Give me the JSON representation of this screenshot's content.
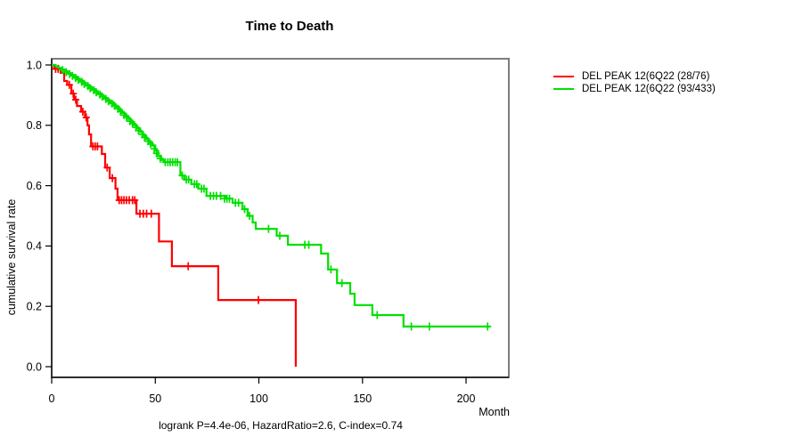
{
  "chart_data": {
    "type": "line",
    "subtype": "kaplan_meier_survival_step",
    "title": "Time to Death",
    "xlabel": "Month",
    "ylabel": "cumulative survival rate",
    "annotation": "logrank P=4.4e-06, HazardRatio=2.6, C-index=0.74",
    "x_ticks": [
      0,
      50,
      100,
      150,
      200
    ],
    "y_ticks": [
      "0.0",
      "0.2",
      "0.4",
      "0.6",
      "0.8",
      "1.0"
    ],
    "xlim": [
      0,
      220
    ],
    "ylim": [
      0,
      1
    ],
    "grid": false,
    "legend_position": "right-outside",
    "series": [
      {
        "label": "DEL PEAK 12(6Q22 (28/76)",
        "color": "#ff0000",
        "start": [
          0,
          1.0
        ],
        "steps": [
          [
            1.2,
            0.987
          ],
          [
            4.3,
            0.974
          ],
          [
            6,
            0.947
          ],
          [
            7.5,
            0.934
          ],
          [
            9.5,
            0.905
          ],
          [
            10.8,
            0.885
          ],
          [
            12.2,
            0.864
          ],
          [
            14.2,
            0.845
          ],
          [
            16.1,
            0.826
          ],
          [
            17.3,
            0.8
          ],
          [
            18,
            0.77
          ],
          [
            19,
            0.73
          ],
          [
            24.2,
            0.705
          ],
          [
            25.8,
            0.66
          ],
          [
            28,
            0.625
          ],
          [
            30.8,
            0.59
          ],
          [
            31.8,
            0.552
          ],
          [
            40.9,
            0.507
          ],
          [
            51.8,
            0.415
          ],
          [
            58,
            0.333
          ],
          [
            80.4,
            0.221
          ],
          [
            117.8,
            0
          ]
        ],
        "end_month": 117.8,
        "censor_marks": [
          [
            1.9,
            0.987
          ],
          [
            3.1,
            0.987
          ],
          [
            8.5,
            0.934
          ],
          [
            10.4,
            0.905
          ],
          [
            11.6,
            0.885
          ],
          [
            15,
            0.845
          ],
          [
            16.7,
            0.826
          ],
          [
            19.9,
            0.73
          ],
          [
            21,
            0.73
          ],
          [
            22.1,
            0.73
          ],
          [
            26.8,
            0.66
          ],
          [
            29.3,
            0.625
          ],
          [
            32.6,
            0.552
          ],
          [
            33.7,
            0.552
          ],
          [
            34.9,
            0.552
          ],
          [
            36.1,
            0.552
          ],
          [
            37.4,
            0.552
          ],
          [
            39,
            0.552
          ],
          [
            40.1,
            0.552
          ],
          [
            42.6,
            0.507
          ],
          [
            44.2,
            0.507
          ],
          [
            45.8,
            0.507
          ],
          [
            48.1,
            0.507
          ],
          [
            65.9,
            0.333
          ],
          [
            99.8,
            0.221
          ]
        ]
      },
      {
        "label": "DEL PEAK 12(6Q22 (93/433)",
        "color": "#00e000",
        "start": [
          0,
          1.0
        ],
        "steps": [
          [
            1.9,
            0.995
          ],
          [
            3.4,
            0.99
          ],
          [
            4.8,
            0.985
          ],
          [
            6.3,
            0.979
          ],
          [
            7.8,
            0.973
          ],
          [
            9.2,
            0.967
          ],
          [
            10.7,
            0.961
          ],
          [
            12.1,
            0.955
          ],
          [
            13.6,
            0.948
          ],
          [
            15,
            0.941
          ],
          [
            16.5,
            0.934
          ],
          [
            17.9,
            0.927
          ],
          [
            19.4,
            0.92
          ],
          [
            20.8,
            0.913
          ],
          [
            22.3,
            0.906
          ],
          [
            23.8,
            0.899
          ],
          [
            25.2,
            0.891
          ],
          [
            26.7,
            0.884
          ],
          [
            28.1,
            0.877
          ],
          [
            29.6,
            0.869
          ],
          [
            31,
            0.861
          ],
          [
            32.5,
            0.851
          ],
          [
            33.9,
            0.841
          ],
          [
            35.4,
            0.831
          ],
          [
            36.9,
            0.821
          ],
          [
            38.3,
            0.811
          ],
          [
            39.8,
            0.8
          ],
          [
            41.2,
            0.79
          ],
          [
            42.7,
            0.778
          ],
          [
            44.1,
            0.766
          ],
          [
            45.6,
            0.754
          ],
          [
            47,
            0.744
          ],
          [
            48.5,
            0.733
          ],
          [
            50,
            0.716
          ],
          [
            51.4,
            0.698
          ],
          [
            52.8,
            0.685
          ],
          [
            54.3,
            0.678
          ],
          [
            62.1,
            0.634
          ],
          [
            64,
            0.62
          ],
          [
            67.4,
            0.605
          ],
          [
            70.8,
            0.59
          ],
          [
            74.7,
            0.566
          ],
          [
            83.9,
            0.557
          ],
          [
            87.3,
            0.543
          ],
          [
            92.1,
            0.522
          ],
          [
            94.6,
            0.5
          ],
          [
            97,
            0.478
          ],
          [
            98.5,
            0.457
          ],
          [
            108.6,
            0.434
          ],
          [
            114,
            0.404
          ],
          [
            130,
            0.375
          ],
          [
            133.4,
            0.322
          ],
          [
            137.7,
            0.277
          ],
          [
            144.1,
            0.242
          ],
          [
            146.2,
            0.204
          ],
          [
            154.8,
            0.171
          ],
          [
            169.8,
            0.133
          ]
        ],
        "end_month": 211.6,
        "censor_marks": [
          [
            5.3,
            0.983
          ],
          [
            7,
            0.976
          ],
          [
            8.7,
            0.97
          ],
          [
            10,
            0.964
          ],
          [
            11.6,
            0.957
          ],
          [
            12.8,
            0.951
          ],
          [
            14.6,
            0.944
          ],
          [
            15.7,
            0.937
          ],
          [
            17.5,
            0.93
          ],
          [
            18.6,
            0.923
          ],
          [
            20.4,
            0.916
          ],
          [
            21.5,
            0.909
          ],
          [
            23.3,
            0.902
          ],
          [
            24.4,
            0.895
          ],
          [
            26.2,
            0.887
          ],
          [
            27.4,
            0.88
          ],
          [
            29.1,
            0.872
          ],
          [
            30.3,
            0.865
          ],
          [
            32,
            0.855
          ],
          [
            33.2,
            0.846
          ],
          [
            34.9,
            0.834
          ],
          [
            36.1,
            0.827
          ],
          [
            37.8,
            0.814
          ],
          [
            39,
            0.806
          ],
          [
            40.7,
            0.793
          ],
          [
            41.9,
            0.783
          ],
          [
            43.7,
            0.77
          ],
          [
            44.8,
            0.76
          ],
          [
            46.6,
            0.747
          ],
          [
            47.7,
            0.738
          ],
          [
            49.5,
            0.722
          ],
          [
            50.6,
            0.707
          ],
          [
            52.4,
            0.69
          ],
          [
            54.8,
            0.678
          ],
          [
            56.1,
            0.678
          ],
          [
            57.2,
            0.678
          ],
          [
            58.4,
            0.678
          ],
          [
            59.6,
            0.678
          ],
          [
            60.7,
            0.678
          ],
          [
            63,
            0.634
          ],
          [
            65,
            0.62
          ],
          [
            66.1,
            0.62
          ],
          [
            68.9,
            0.605
          ],
          [
            70,
            0.605
          ],
          [
            72.3,
            0.59
          ],
          [
            73.5,
            0.59
          ],
          [
            76.6,
            0.566
          ],
          [
            78.1,
            0.566
          ],
          [
            79.5,
            0.566
          ],
          [
            81.5,
            0.566
          ],
          [
            83.4,
            0.557
          ],
          [
            84.6,
            0.557
          ],
          [
            85.8,
            0.557
          ],
          [
            88.7,
            0.543
          ],
          [
            90.2,
            0.543
          ],
          [
            93.1,
            0.522
          ],
          [
            95.5,
            0.5
          ],
          [
            104.7,
            0.457
          ],
          [
            110.1,
            0.434
          ],
          [
            122.2,
            0.404
          ],
          [
            124.1,
            0.404
          ],
          [
            134.8,
            0.322
          ],
          [
            140.1,
            0.277
          ],
          [
            157.1,
            0.171
          ],
          [
            173.6,
            0.133
          ],
          [
            182.3,
            0.133
          ],
          [
            210.4,
            0.133
          ]
        ]
      }
    ]
  }
}
